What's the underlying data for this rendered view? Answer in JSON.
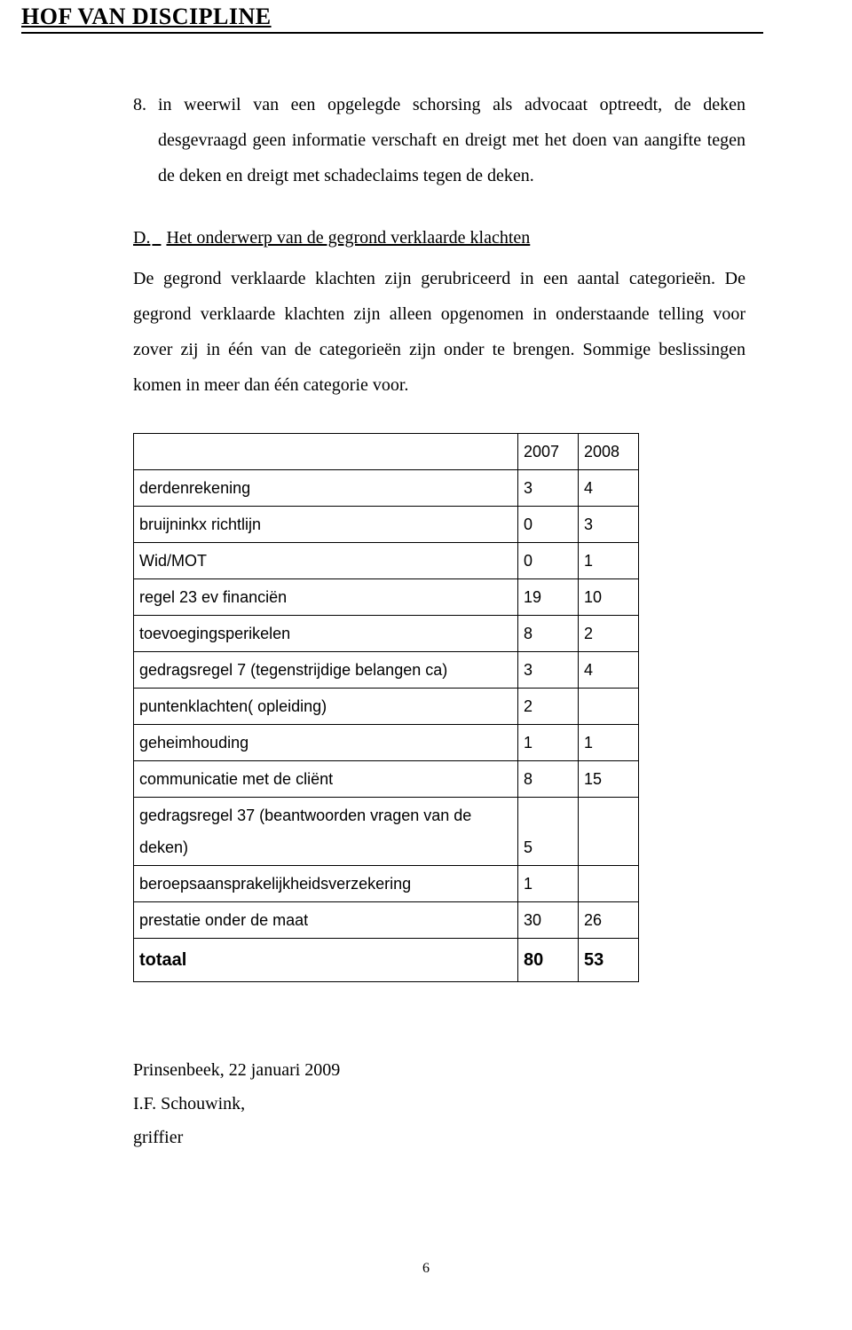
{
  "header": {
    "title": "HOF VAN DISCIPLINE"
  },
  "list": {
    "item8": {
      "num": "8.",
      "text": "in weerwil van een opgelegde schorsing als advocaat optreedt, de deken desgevraagd geen informatie verschaft en dreigt met het doen van aangifte tegen de deken en dreigt met schadeclaims tegen de deken."
    }
  },
  "sectionD": {
    "label": "D.",
    "title": "Het onderwerp van de gegrond verklaarde klachten",
    "para": "De gegrond verklaarde klachten zijn gerubriceerd in een aantal categorieën. De gegrond verklaarde klachten zijn alleen opgenomen in onderstaande telling voor zover zij in één van de categorieën zijn onder te brengen. Sommige beslissingen komen in meer dan één categorie voor."
  },
  "table": {
    "headers": [
      "",
      "2007",
      "2008"
    ],
    "rows": [
      {
        "label": "derdenrekening",
        "v2007": "3",
        "v2008": "4"
      },
      {
        "label": "bruijninkx richtlijn",
        "v2007": "0",
        "v2008": "3"
      },
      {
        "label": "Wid/MOT",
        "v2007": "0",
        "v2008": "1"
      },
      {
        "label": "regel 23 ev financiën",
        "v2007": "19",
        "v2008": "10"
      },
      {
        "label": "toevoegingsperikelen",
        "v2007": "8",
        "v2008": "2"
      },
      {
        "label": "gedragsregel 7 (tegenstrijdige belangen ca)",
        "v2007": "3",
        "v2008": "4"
      },
      {
        "label": "puntenklachten( opleiding)",
        "v2007": "2",
        "v2008": ""
      },
      {
        "label": "geheimhouding",
        "v2007": "1",
        "v2008": "1"
      },
      {
        "label": "communicatie met de cliënt",
        "v2007": "8",
        "v2008": "15"
      },
      {
        "label": "gedragsregel 37 (beantwoorden vragen van de deken)",
        "v2007": "5",
        "v2008": ""
      },
      {
        "label": "beroepsaansprakelijkheidsverzekering",
        "v2007": "1",
        "v2008": ""
      },
      {
        "label": "prestatie onder de maat",
        "v2007": "30",
        "v2008": "26"
      }
    ],
    "total": {
      "label": "totaal",
      "v2007": "80",
      "v2008": "53"
    }
  },
  "footer": {
    "place_date": "Prinsenbeek, 22 januari 2009",
    "name": "I.F. Schouwink,",
    "role": "griffier"
  },
  "page_number": "6"
}
